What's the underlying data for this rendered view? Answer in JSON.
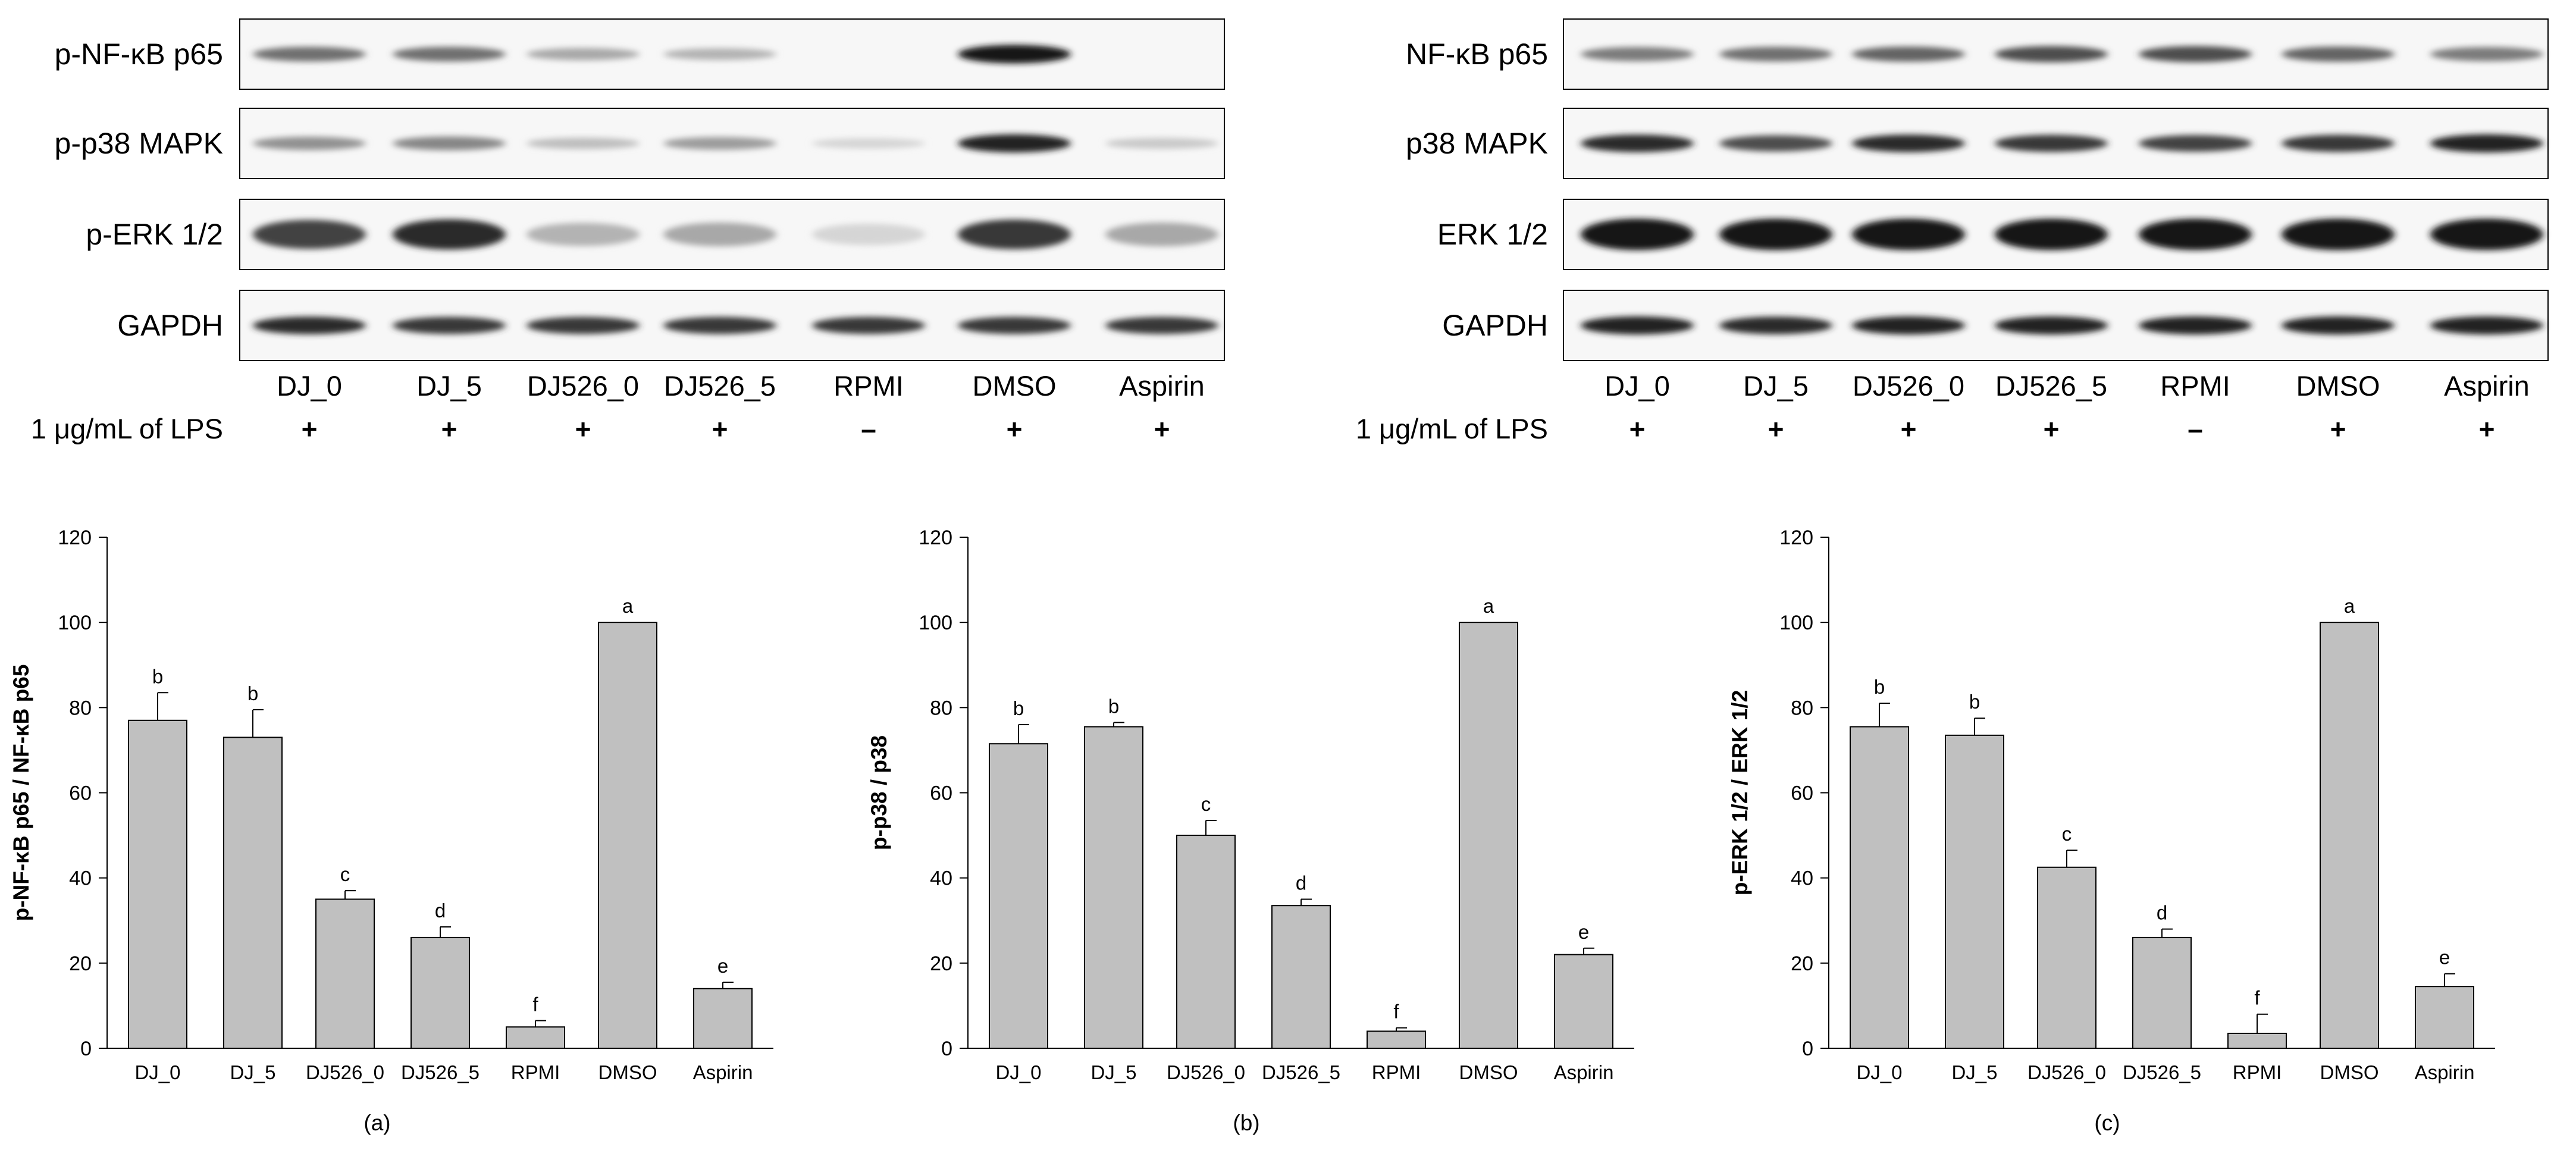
{
  "blots": {
    "left": {
      "rows": [
        "p-NF-κB p65",
        "p-p38 MAPK",
        "p-ERK 1/2",
        "GAPDH"
      ],
      "lanes": [
        "DJ_0",
        "DJ_5",
        "DJ526_0",
        "DJ526_5",
        "RPMI",
        "DMSO",
        "Aspirin"
      ],
      "lps_label": "1 μg/mL of LPS",
      "lps": [
        "+",
        "+",
        "+",
        "+",
        "–",
        "+",
        "+"
      ],
      "intensity": [
        [
          0.55,
          0.55,
          0.3,
          0.25,
          0.0,
          0.95,
          0.0
        ],
        [
          0.4,
          0.45,
          0.2,
          0.35,
          0.1,
          0.9,
          0.15
        ],
        [
          0.75,
          0.85,
          0.25,
          0.3,
          0.1,
          0.8,
          0.3
        ],
        [
          0.85,
          0.8,
          0.8,
          0.8,
          0.8,
          0.8,
          0.8
        ]
      ]
    },
    "right": {
      "rows": [
        "NF-κB p65",
        "p38 MAPK",
        "ERK 1/2",
        "GAPDH"
      ],
      "lanes": [
        "DJ_0",
        "DJ_5",
        "DJ526_0",
        "DJ526_5",
        "RPMI",
        "DMSO",
        "Aspirin"
      ],
      "lps_label": "1 μg/mL of LPS",
      "lps": [
        "+",
        "+",
        "+",
        "+",
        "–",
        "+",
        "+"
      ],
      "intensity": [
        [
          0.5,
          0.55,
          0.6,
          0.7,
          0.7,
          0.6,
          0.5
        ],
        [
          0.85,
          0.7,
          0.85,
          0.8,
          0.75,
          0.8,
          0.9
        ],
        [
          0.95,
          0.95,
          0.95,
          0.95,
          0.95,
          0.95,
          0.95
        ],
        [
          0.9,
          0.85,
          0.9,
          0.9,
          0.9,
          0.9,
          0.9
        ]
      ]
    }
  },
  "chart_data": [
    {
      "type": "bar",
      "caption": "(a)",
      "ylabel": "p-NF-κB p65 / NF-κB p65",
      "ylim": [
        0,
        120
      ],
      "yticks": [
        0,
        20,
        40,
        60,
        80,
        100,
        120
      ],
      "categories": [
        "DJ_0",
        "DJ_5",
        "DJ526_0",
        "DJ526_5",
        "RPMI",
        "DMSO",
        "Aspirin"
      ],
      "values": [
        77,
        73,
        35,
        26,
        5,
        100,
        14
      ],
      "errors": [
        6.5,
        6.5,
        2,
        2.5,
        1.5,
        0,
        1.5
      ],
      "letters": [
        "b",
        "b",
        "c",
        "d",
        "f",
        "a",
        "e"
      ],
      "bar_color": "#c0c0c0"
    },
    {
      "type": "bar",
      "caption": "(b)",
      "ylabel": "p-p38 / p38",
      "ylim": [
        0,
        120
      ],
      "yticks": [
        0,
        20,
        40,
        60,
        80,
        100,
        120
      ],
      "categories": [
        "DJ_0",
        "DJ_5",
        "DJ526_0",
        "DJ526_5",
        "RPMI",
        "DMSO",
        "Aspirin"
      ],
      "values": [
        71.5,
        75.5,
        50,
        33.5,
        4,
        100,
        22
      ],
      "errors": [
        4.5,
        1,
        3.5,
        1.5,
        0.8,
        0,
        1.5
      ],
      "letters": [
        "b",
        "b",
        "c",
        "d",
        "f",
        "a",
        "e"
      ],
      "bar_color": "#c0c0c0"
    },
    {
      "type": "bar",
      "caption": "(c)",
      "ylabel": "p-ERK 1/2 / ERK 1/2",
      "ylim": [
        0,
        120
      ],
      "yticks": [
        0,
        20,
        40,
        60,
        80,
        100,
        120
      ],
      "categories": [
        "DJ_0",
        "DJ_5",
        "DJ526_0",
        "DJ526_5",
        "RPMI",
        "DMSO",
        "Aspirin"
      ],
      "values": [
        75.5,
        73.5,
        42.5,
        26,
        3.5,
        100,
        14.5
      ],
      "errors": [
        5.5,
        4,
        4,
        2,
        4.5,
        0,
        3
      ],
      "letters": [
        "b",
        "b",
        "c",
        "d",
        "f",
        "a",
        "e"
      ],
      "bar_color": "#c0c0c0"
    }
  ]
}
